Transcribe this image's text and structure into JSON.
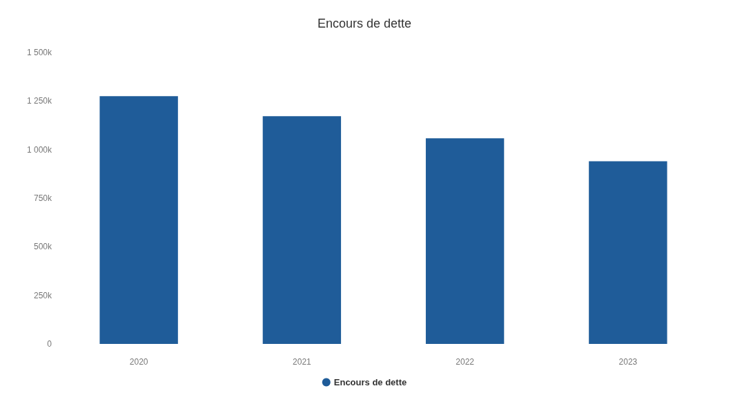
{
  "chart_data": {
    "type": "bar",
    "title": "Encours de dette",
    "categories": [
      "2020",
      "2021",
      "2022",
      "2023"
    ],
    "series": [
      {
        "name": "Encours de dette",
        "color": "#1f5c99",
        "values": [
          1275000,
          1172000,
          1058000,
          940000
        ]
      }
    ],
    "ylim": [
      0,
      1500000
    ],
    "yticks": [
      {
        "value": 0,
        "label": "0"
      },
      {
        "value": 250000,
        "label": "250k"
      },
      {
        "value": 500000,
        "label": "500k"
      },
      {
        "value": 750000,
        "label": "750k"
      },
      {
        "value": 1000000,
        "label": "1 000k"
      },
      {
        "value": 1250000,
        "label": "1 250k"
      },
      {
        "value": 1500000,
        "label": "1 500k"
      }
    ],
    "legend": "bottom",
    "grid": false
  }
}
